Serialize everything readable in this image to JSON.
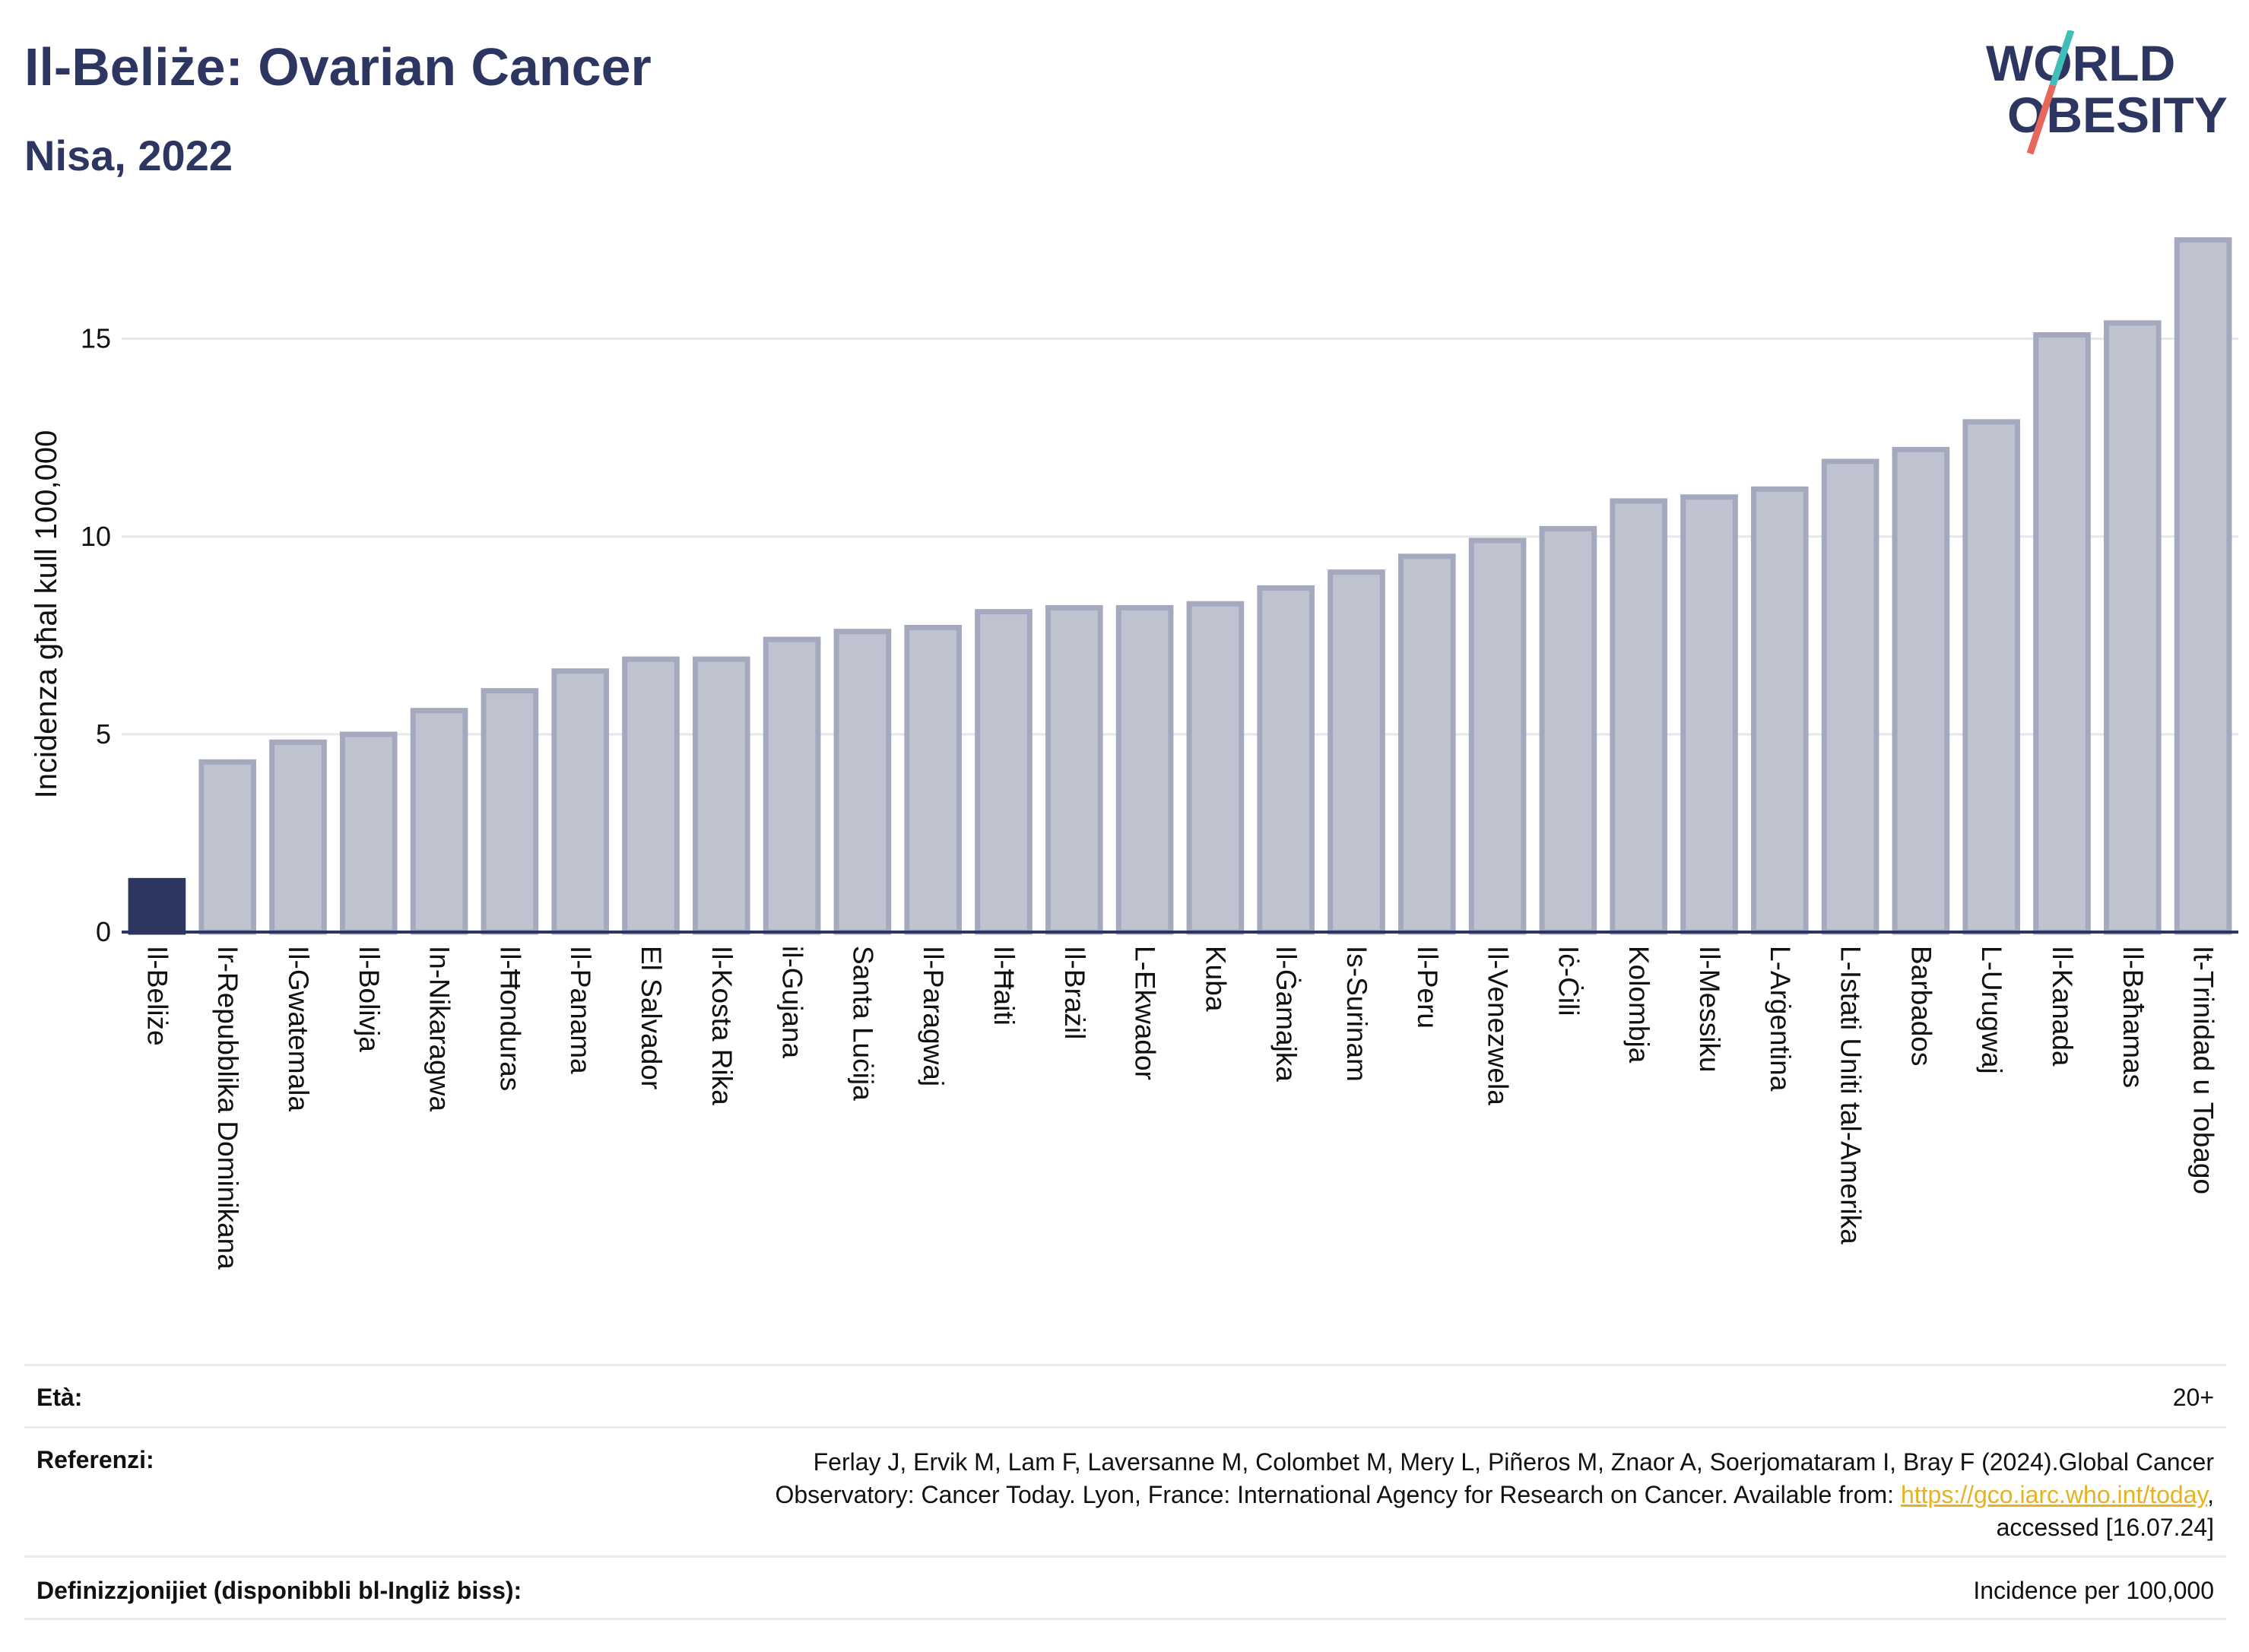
{
  "header": {
    "title": "Il-Beliże: Ovarian Cancer",
    "subtitle": "Nisa, 2022"
  },
  "logo": {
    "line1": "WORLD",
    "line2": "OBESITY",
    "colors": {
      "text": "#2d3661",
      "slash_top": "#3fbfb7",
      "slash_bottom": "#e8675b"
    }
  },
  "colors": {
    "highlight_bar": "#2d3661",
    "other_bar_fill": "#bfc2cf",
    "other_bar_stroke": "#a5a9bd",
    "grid": "#e6e7ea",
    "axis": "#2d3661"
  },
  "chart_data": {
    "type": "bar",
    "ylabel": "Incidenza għal kull 100,000",
    "ylim": [
      0,
      17.8
    ],
    "yticks": [
      0,
      5,
      10,
      15
    ],
    "grid": true,
    "highlight_index": 0,
    "categories": [
      "Il-Beliże",
      "Ir-Repubblika Dominikana",
      "Il-Gwatemala",
      "Il-Bolivja",
      "In-Nikaragwa",
      "Il-Ħonduras",
      "Il-Panama",
      "El Salvador",
      "Il-Kosta Rika",
      "il-Gujana",
      "Santa Luċija",
      "Il-Paragwaj",
      "Il-Ħaiti",
      "Il-Brażil",
      "L-Ekwador",
      "Kuba",
      "Il-Ġamajka",
      "Is-Surinam",
      "Il-Peru",
      "Il-Venezwela",
      "Iċ-Ċili",
      "Kolombja",
      "Il-Messiku",
      "L-Arġentina",
      "L-Istati Uniti tal-Amerika",
      "Barbados",
      "L-Urugwaj",
      "Il-Kanada",
      "Il-Baħamas",
      "It-Trinidad u Tobago"
    ],
    "values": [
      1.3,
      4.3,
      4.8,
      5.0,
      5.6,
      6.1,
      6.6,
      6.9,
      6.9,
      7.4,
      7.6,
      7.7,
      8.1,
      8.2,
      8.2,
      8.3,
      8.7,
      9.1,
      9.5,
      9.9,
      10.2,
      10.9,
      11.0,
      11.2,
      11.9,
      12.2,
      12.9,
      15.1,
      15.4,
      17.5
    ]
  },
  "meta": {
    "age_label": "Età:",
    "age_value": "20+",
    "ref_label": "Referenzi:",
    "ref_line1": "Ferlay J, Ervik M, Lam F, Laversanne M, Colombet M, Mery L, Piñeros M, Znaor A, Soerjomataram I, Bray F (2024).Global Cancer",
    "ref_line2_prefix": "Observatory: Cancer Today. Lyon, France: International Agency for Research on Cancer. Available from: ",
    "ref_link": "https://gco.iarc.who.int/today",
    "ref_line2_suffix": ",",
    "ref_line3": "accessed [16.07.24]",
    "def_label": "Definizzjonijiet (disponibbli bl-Ingliż biss):",
    "def_value": "Incidence per 100,000"
  }
}
